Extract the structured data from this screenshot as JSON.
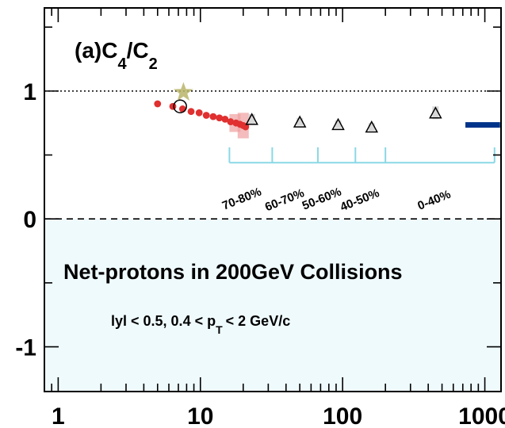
{
  "chart_data": {
    "type": "scatter",
    "title_parts": {
      "prefix": "(a)C",
      "sub1": "4",
      "slash": "/C",
      "sub2": "2"
    },
    "xscale": "log",
    "xlim": [
      0.8,
      1300
    ],
    "ylim": [
      -1.35,
      1.65
    ],
    "x_tick_labels": [
      "1",
      "10",
      "100",
      "1000"
    ],
    "x_tick_values": [
      1,
      10,
      100,
      1000
    ],
    "y_tick_labels": [
      "1",
      "0",
      "-1"
    ],
    "y_tick_values": [
      1,
      0,
      -1
    ],
    "reference_lines": [
      {
        "y": 1,
        "style": "dotted"
      },
      {
        "y": 0,
        "style": "dashed"
      }
    ],
    "shaded_region": {
      "y_from": -1.35,
      "y_to": 0,
      "color": "#effafd"
    },
    "series": [
      {
        "marker": "circle-filled",
        "color": "#e03030",
        "points": [
          {
            "x": 5.0,
            "y": 0.9
          },
          {
            "x": 6.4,
            "y": 0.88
          },
          {
            "x": 7.5,
            "y": 0.86
          },
          {
            "x": 8.6,
            "y": 0.84
          },
          {
            "x": 9.8,
            "y": 0.83
          },
          {
            "x": 11.0,
            "y": 0.81
          },
          {
            "x": 12.3,
            "y": 0.8
          },
          {
            "x": 13.6,
            "y": 0.79
          },
          {
            "x": 14.9,
            "y": 0.78
          },
          {
            "x": 16.3,
            "y": 0.76
          },
          {
            "x": 17.8,
            "y": 0.75
          },
          {
            "x": 19.0,
            "y": 0.74
          },
          {
            "x": 20.0,
            "y": 0.73
          },
          {
            "x": 20.8,
            "y": 0.72
          }
        ],
        "error_bands": [
          {
            "x": 17.5,
            "y_low": 0.68,
            "y_high": 0.82
          },
          {
            "x": 20.0,
            "y_low": 0.63,
            "y_high": 0.83
          }
        ]
      },
      {
        "marker": "circle-open",
        "color": "#000000",
        "points": [
          {
            "x": 7.2,
            "y": 0.88
          }
        ]
      },
      {
        "marker": "star",
        "color": "#b8b468",
        "points": [
          {
            "x": 7.6,
            "y": 0.99
          }
        ]
      },
      {
        "marker": "triangle-open",
        "color": "#000000",
        "points": [
          {
            "x": 23,
            "y": 0.78,
            "err": 0.04
          },
          {
            "x": 50,
            "y": 0.76,
            "err": 0.03
          },
          {
            "x": 93,
            "y": 0.74,
            "err": 0.03
          },
          {
            "x": 160,
            "y": 0.72,
            "err": 0.03
          },
          {
            "x": 450,
            "y": 0.83,
            "err": 0.05
          }
        ]
      },
      {
        "marker": "band",
        "color": "#00338a",
        "x_from": 730,
        "x_to": 1280,
        "y": 0.735
      }
    ],
    "centrality_bracket": {
      "color": "#8ad8e6",
      "y": 0.44,
      "tick_height": 0.12,
      "edges": [
        16,
        32,
        67,
        123,
        200,
        1170
      ],
      "labels": [
        "70-80%",
        "60-70%",
        "50-60%",
        "40-50%",
        "0-40%"
      ],
      "label_anchor_x": [
        20,
        40,
        73,
        135,
        450
      ],
      "label_anchor_y": [
        0.13,
        0.12,
        0.13,
        0.12,
        0.12
      ]
    },
    "annotations": {
      "main": "Net-protons in 200GeV Collisions",
      "sub_prefix": "lyl < 0.5,  0.4 < p",
      "sub_subscript": "T",
      "sub_suffix": "< 2 GeV/c"
    }
  }
}
